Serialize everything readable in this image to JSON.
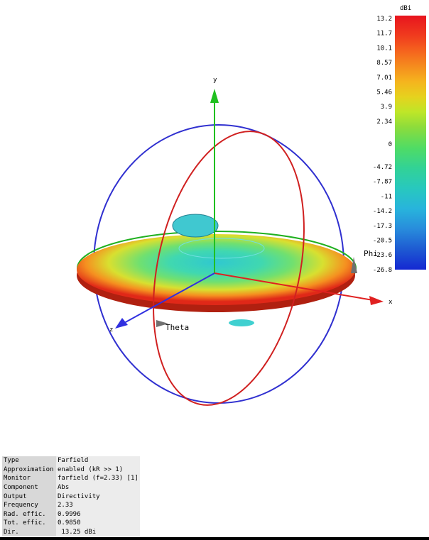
{
  "colorbar": {
    "unit": "dBi",
    "labels": [
      "13.2",
      "11.7",
      "10.1",
      "8.57",
      "7.01",
      "5.46",
      "3.9",
      "2.34",
      "0",
      "-4.72",
      "-7.87",
      "-11",
      "-14.2",
      "-17.3",
      "-20.5",
      "-23.6",
      "-26.8"
    ]
  },
  "axes": {
    "y": "y",
    "x": "x",
    "z": "z",
    "phi": "Phi",
    "theta": "Theta"
  },
  "info": [
    [
      "Type",
      "Farfield"
    ],
    [
      "Approximation",
      "enabled (kR >> 1)"
    ],
    [
      "Monitor",
      "farfield (f=2.33) [1]"
    ],
    [
      "Component",
      "Abs"
    ],
    [
      "Output",
      "Directivity"
    ],
    [
      "Frequency",
      "2.33"
    ],
    [
      "Rad. effic.",
      "0.9996"
    ],
    [
      "Tot. effic.",
      "0.9850"
    ],
    [
      "Dir.",
      " 13.25 dBi"
    ]
  ]
}
